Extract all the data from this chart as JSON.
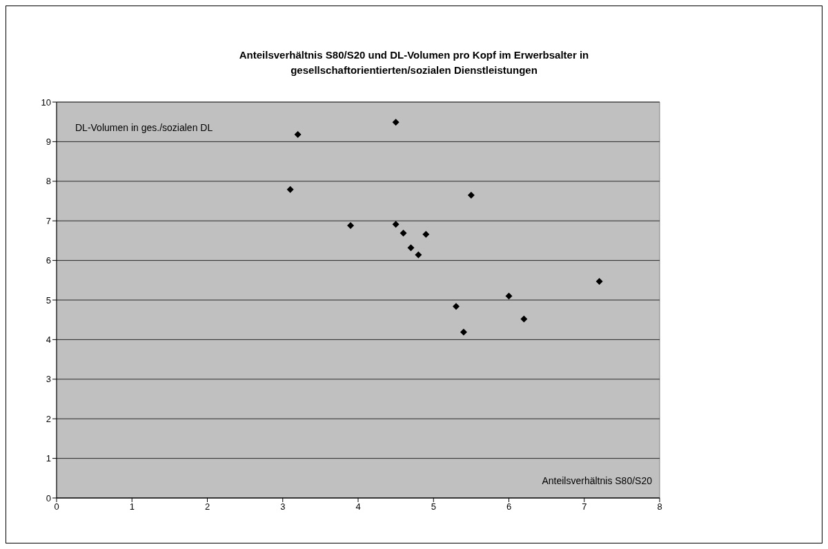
{
  "chart_data": {
    "type": "scatter",
    "title": "Anteilsverhältnis S80/S20 und DL-Volumen pro Kopf im Erwerbsalter in gesellschaftorientierten/sozialen Dienstleistungen",
    "xlabel": "Anteilsverhältnis S80/S20",
    "ylabel": "DL-Volumen in ges./sozialen DL",
    "x": [
      3.1,
      3.2,
      3.9,
      4.5,
      4.5,
      4.6,
      4.7,
      4.8,
      4.9,
      5.5,
      5.3,
      5.4,
      6.0,
      6.2,
      7.2
    ],
    "series": [
      {
        "color": "#000000",
        "values": [
          7.79,
          9.18,
          6.88,
          9.49,
          6.91,
          6.69,
          6.32,
          6.14,
          6.66,
          7.65,
          4.84,
          4.19,
          5.1,
          4.52,
          5.47
        ]
      }
    ],
    "xlim": [
      0,
      8
    ],
    "xticks": [
      0,
      1,
      2,
      3,
      4,
      5,
      6,
      7,
      8
    ],
    "ylim": [
      0,
      10
    ],
    "yticks": [
      0,
      1,
      2,
      3,
      4,
      5,
      6,
      7,
      8,
      9,
      10
    ],
    "grid": "y",
    "marker": "diamond"
  }
}
